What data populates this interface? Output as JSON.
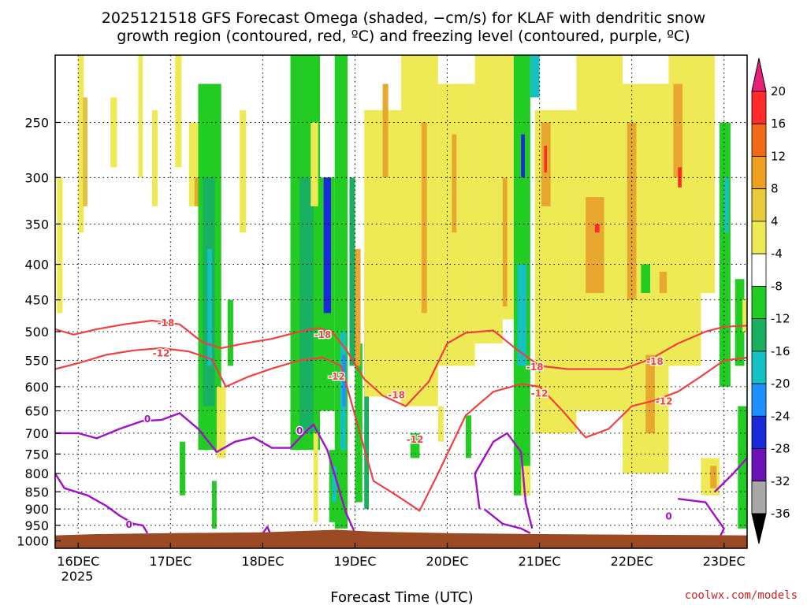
{
  "chart_data": {
    "type": "heatmap",
    "title_line1": "2025121518 GFS Forecast Omega (shaded, −cm/s) for KLAF with dendritic snow",
    "title_line2": "growth region (contoured, red, ºC) and freezing level (contoured, purple, ºC)",
    "xlabel": "Forecast Time (UTC)",
    "x_ticks": [
      "16DEC",
      "17DEC",
      "18DEC",
      "19DEC",
      "20DEC",
      "21DEC",
      "22DEC",
      "23DEC"
    ],
    "x_year": "2025",
    "y_ticks": [
      250,
      300,
      350,
      400,
      450,
      500,
      550,
      600,
      650,
      700,
      750,
      800,
      850,
      900,
      950,
      1000
    ],
    "ylim": [
      1025,
      200
    ],
    "y_scale": "log-pressure",
    "grid": true,
    "colorbar": {
      "ticks": [
        20,
        16,
        12,
        8,
        4,
        -4,
        -8,
        -12,
        -16,
        -20,
        -24,
        -28,
        -32,
        -36
      ],
      "colors": [
        "#ff2a2a",
        "#f26a18",
        "#f0a020",
        "#e8cc3c",
        "#eeea55",
        "#ffffff",
        "#22cc22",
        "#19b060",
        "#14c0c0",
        "#1e90ff",
        "#1a2ad8",
        "#6a14b8",
        "#a010d8",
        "#a8a8a8"
      ],
      "top_color": "#e8207a",
      "bottom_color": "#000000"
    },
    "series": [
      {
        "name": "-18",
        "color": "#f04040",
        "x": [
          15.75,
          15.95,
          16.2,
          16.5,
          16.8,
          17.1,
          17.35,
          17.55,
          17.8,
          18.1,
          18.4,
          18.6,
          18.75,
          18.9,
          19.1,
          19.3,
          19.55,
          19.8,
          20.0,
          20.2,
          20.5,
          20.75,
          21.0,
          21.3,
          21.6,
          21.9,
          22.2,
          22.5,
          22.8,
          23.0,
          23.25
        ],
        "y": [
          496,
          505,
          496,
          488,
          482,
          488,
          518,
          528,
          520,
          512,
          500,
          494,
          500,
          530,
          585,
          618,
          640,
          590,
          520,
          502,
          498,
          530,
          560,
          566,
          566,
          566,
          548,
          520,
          500,
          492,
          490
        ]
      },
      {
        "name": "-12",
        "color": "#f04040",
        "x": [
          15.75,
          16.0,
          16.3,
          16.6,
          16.9,
          17.2,
          17.45,
          17.6,
          17.85,
          18.1,
          18.4,
          18.65,
          18.85,
          19.0,
          19.2,
          19.45,
          19.7,
          19.9,
          20.2,
          20.5,
          20.8,
          21.0,
          21.25,
          21.5,
          21.75,
          22.0,
          22.25,
          22.5,
          22.75,
          23.0,
          23.25
        ],
        "y": [
          566,
          555,
          540,
          532,
          528,
          534,
          548,
          600,
          580,
          565,
          550,
          545,
          560,
          660,
          820,
          860,
          905,
          800,
          660,
          610,
          595,
          600,
          650,
          710,
          690,
          640,
          628,
          610,
          580,
          550,
          545
        ]
      },
      {
        "name": "0",
        "color": "#a010c8",
        "x": [
          15.75,
          16.0,
          16.2,
          16.45,
          16.7,
          16.9,
          17.1,
          17.3,
          17.5,
          17.7,
          17.9,
          18.1,
          18.3,
          18.45,
          18.55,
          18.7,
          18.8,
          18.9,
          19.0
        ],
        "y": [
          700,
          700,
          712,
          690,
          672,
          670,
          655,
          690,
          745,
          720,
          710,
          735,
          735,
          700,
          680,
          740,
          820,
          910,
          975
        ]
      }
    ],
    "contour_labels": [
      {
        "text": "-18",
        "x": 16.95,
        "y": 486
      },
      {
        "text": "-12",
        "x": 16.9,
        "y": 537
      },
      {
        "text": "0",
        "x": 16.75,
        "y": 668
      },
      {
        "text": "0",
        "x": 18.4,
        "y": 695
      },
      {
        "text": "-18",
        "x": 18.65,
        "y": 505
      },
      {
        "text": "-12",
        "x": 18.8,
        "y": 580
      },
      {
        "text": "0",
        "x": 16.55,
        "y": 948
      },
      {
        "text": "-18",
        "x": 19.45,
        "y": 617
      },
      {
        "text": "-12",
        "x": 19.65,
        "y": 715
      },
      {
        "text": "-18",
        "x": 20.95,
        "y": 562
      },
      {
        "text": "-12",
        "x": 21.0,
        "y": 614
      },
      {
        "text": "-18",
        "x": 22.25,
        "y": 552
      },
      {
        "text": "-12",
        "x": 22.35,
        "y": 630
      },
      {
        "text": "0",
        "x": 22.4,
        "y": 922
      }
    ]
  },
  "credit": "coolwx.com/models",
  "colors": {
    "terrain": "#9b4a24",
    "credit": "#d02020",
    "grid": "#000000"
  }
}
